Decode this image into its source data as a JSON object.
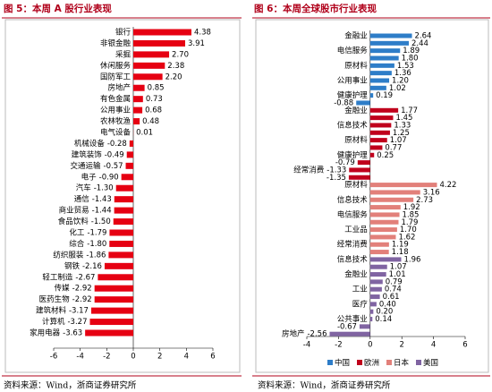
{
  "chart_data": [
    {
      "type": "bar",
      "orientation": "horizontal",
      "title": "图 5：本周 A 股行业表现",
      "categories": [
        "银行",
        "非银金融",
        "采掘",
        "休闲服务",
        "国防军工",
        "房地产",
        "有色金属",
        "公用事业",
        "农林牧渔",
        "电气设备",
        "机械设备",
        "建筑装饰",
        "交通运输",
        "电子",
        "汽车",
        "通信",
        "商业贸易",
        "食品饮料",
        "化工",
        "综合",
        "纺织服装",
        "钢铁",
        "轻工制造",
        "传媒",
        "医药生物",
        "建筑材料",
        "计算机",
        "家用电器"
      ],
      "values": [
        4.38,
        3.91,
        2.7,
        2.38,
        2.2,
        0.85,
        0.73,
        0.68,
        0.48,
        0.01,
        -0.28,
        -0.49,
        -0.57,
        -0.9,
        -1.3,
        -1.43,
        -1.44,
        -1.5,
        -1.79,
        -1.8,
        -1.86,
        -2.16,
        -2.67,
        -2.92,
        -2.92,
        -3.17,
        -3.27,
        -3.63
      ],
      "value_labels": [
        "4.38",
        "3.91",
        "2.70",
        "2.38",
        "2.20",
        "0.85",
        "0.73",
        "0.68",
        "0.48",
        "0.01",
        "-0.28",
        "-0.49",
        "-0.57",
        "-0.90",
        "-1.30",
        "-1.43",
        "-1.44",
        "-1.50",
        "-1.79",
        "-1.80",
        "-1.86",
        "-2.16",
        "-2.67",
        "-2.92",
        "-2.92",
        "-3.17",
        "-3.27",
        "-3.63"
      ],
      "color": "#e60012",
      "xlim": [
        -6,
        6
      ],
      "xticks": [
        -6,
        -4,
        -2,
        0,
        2,
        4,
        6
      ],
      "source": "资料来源：Wind，浙商证券研究所"
    },
    {
      "type": "bar",
      "orientation": "horizontal",
      "title": "图 6：本周全球股市行业表现",
      "series": [
        {
          "name": "中国",
          "color": "#2e7dc8",
          "categories": [
            "金融业",
            null,
            "电信服务",
            null,
            "原材料",
            null,
            "公用事业",
            null,
            "健康护理",
            null
          ],
          "values": [
            2.64,
            2.44,
            1.89,
            1.8,
            1.53,
            1.36,
            1.2,
            1.02,
            0.19,
            -0.88
          ],
          "value_labels": [
            "2.64",
            "2.44",
            "1.89",
            "1.80",
            "1.53",
            "1.36",
            "1.20",
            "1.02",
            "0.19",
            "-0.88"
          ]
        },
        {
          "name": "欧洲",
          "color": "#c0001c",
          "categories": [
            "金融业",
            null,
            "信息技术",
            null,
            "原材料",
            null,
            "健康护理",
            null,
            "经常消费",
            null
          ],
          "values": [
            1.77,
            1.45,
            1.33,
            1.25,
            1.07,
            0.77,
            0.25,
            -0.79,
            -1.33,
            -1.35
          ],
          "value_labels": [
            "1.77",
            "1.45",
            "1.33",
            "1.25",
            "1.07",
            "0.77",
            "0.25",
            "-0.79",
            "-1.33",
            "-1.35"
          ]
        },
        {
          "name": "日本",
          "color": "#e2807a",
          "categories": [
            "原材料",
            null,
            "信息技术",
            null,
            "电信服务",
            null,
            "工业品",
            null,
            "经常消费",
            null
          ],
          "values": [
            4.22,
            3.16,
            2.73,
            1.92,
            1.85,
            1.79,
            1.7,
            1.62,
            1.19,
            1.18
          ],
          "value_labels": [
            "4.22",
            "3.16",
            "2.73",
            "1.92",
            "1.85",
            "1.79",
            "1.70",
            "1.62",
            "1.19",
            "1.18"
          ]
        },
        {
          "name": "美国",
          "color": "#8064a2",
          "categories": [
            "信息技术",
            null,
            "金融业",
            null,
            "工业",
            null,
            "医疗",
            null,
            "公共事业",
            null,
            "房地产"
          ],
          "values": [
            1.96,
            1.07,
            1.01,
            0.79,
            0.74,
            0.61,
            0.4,
            0.2,
            0.14,
            -0.67,
            -2.56
          ],
          "value_labels": [
            "1.96",
            "1.07",
            "1.01",
            "0.79",
            "0.74",
            "0.61",
            "0.40",
            "0.20",
            "0.14",
            "-0.67",
            "-2.56"
          ]
        }
      ],
      "xlim": [
        -4,
        6
      ],
      "xticks": [
        -4,
        -2,
        0,
        2,
        4,
        6
      ],
      "legend": "bottom",
      "source": "资料来源：Wind，浙商证券研究所"
    }
  ]
}
